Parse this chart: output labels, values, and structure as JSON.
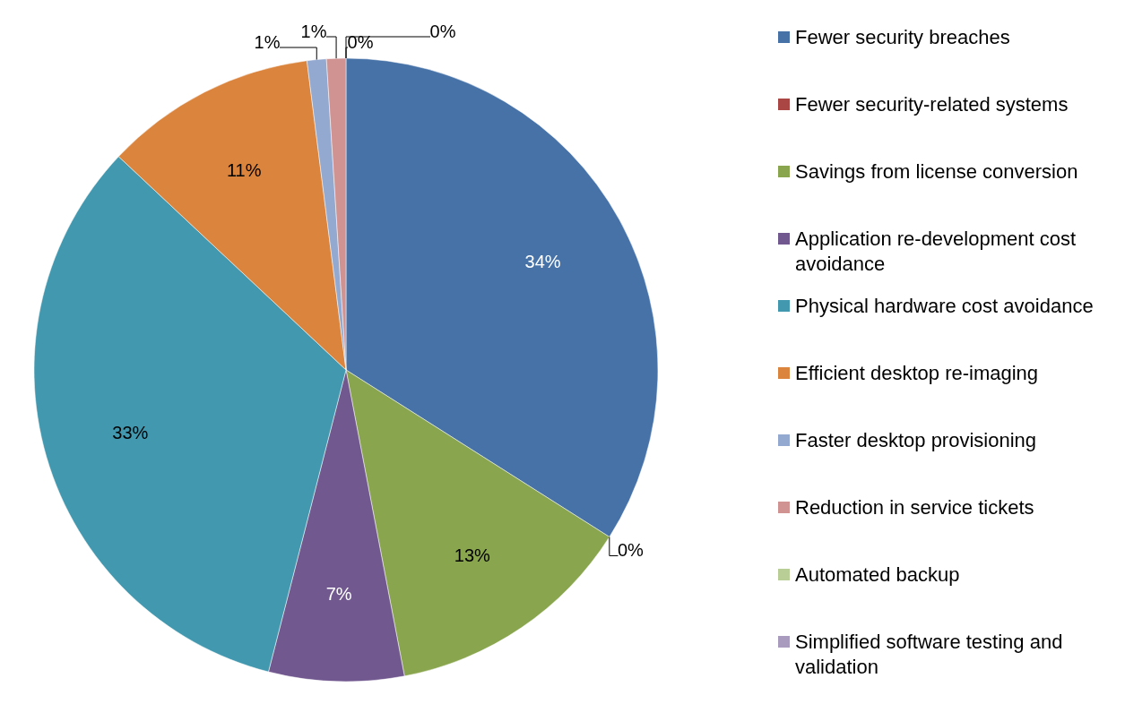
{
  "chart_data": {
    "type": "pie",
    "categories": [
      "Fewer security breaches",
      "Fewer security-related systems",
      "Savings from license conversion",
      "Application re-development cost avoidance",
      "Physical hardware cost avoidance",
      "Efficient desktop re-imaging",
      "Faster desktop provisioning",
      "Reduction in service tickets",
      "Automated backup",
      "Simplified software testing and validation"
    ],
    "values": [
      34,
      0,
      13,
      7,
      33,
      11,
      1,
      1,
      0,
      0
    ],
    "colors": [
      "#4672a8",
      "#aa4643",
      "#89a54e",
      "#71588f",
      "#4198af",
      "#db843d",
      "#93a9cf",
      "#d19392",
      "#b9cd96",
      "#a99bbd"
    ],
    "value_labels": [
      "34%",
      "0%",
      "13%",
      "7%",
      "33%",
      "11%",
      "1%",
      "1%",
      "0%",
      "0%"
    ],
    "legend": "right"
  }
}
